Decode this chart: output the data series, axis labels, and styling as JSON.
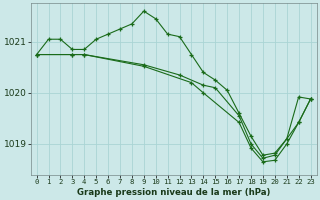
{
  "background_color": "#cce8e8",
  "grid_color": "#aad4d4",
  "line_color": "#1a6b1a",
  "xlabel": "Graphe pression niveau de la mer (hPa)",
  "ylim": [
    1018.4,
    1021.75
  ],
  "yticks": [
    1019,
    1020,
    1021
  ],
  "xlim": [
    -0.5,
    23.5
  ],
  "xticks": [
    0,
    1,
    2,
    3,
    4,
    5,
    6,
    7,
    8,
    9,
    10,
    11,
    12,
    13,
    14,
    15,
    16,
    17,
    18,
    19,
    20,
    21,
    22,
    23
  ],
  "series": [
    {
      "x": [
        0,
        1,
        2,
        3,
        4,
        5,
        6,
        7,
        8,
        9,
        10,
        11,
        12,
        13,
        14,
        15,
        16,
        17,
        18,
        19,
        20,
        21,
        22,
        23
      ],
      "y": [
        1020.75,
        1021.05,
        1021.05,
        1020.85,
        1020.85,
        1021.05,
        1021.15,
        1021.25,
        1021.35,
        1021.6,
        1021.45,
        1021.15,
        1021.1,
        1020.75,
        1020.4,
        1020.25,
        1020.05,
        1019.6,
        1019.15,
        1018.78,
        1018.82,
        1019.1,
        1019.92,
        1019.88
      ]
    },
    {
      "x": [
        0,
        3,
        4,
        9,
        12,
        14,
        15,
        17,
        18,
        19,
        20,
        22,
        23
      ],
      "y": [
        1020.75,
        1020.75,
        1020.75,
        1020.55,
        1020.35,
        1020.15,
        1020.1,
        1019.55,
        1019.0,
        1018.72,
        1018.78,
        1019.42,
        1019.88
      ]
    },
    {
      "x": [
        0,
        3,
        4,
        9,
        13,
        14,
        17,
        18,
        19,
        20,
        21,
        22,
        23
      ],
      "y": [
        1020.75,
        1020.75,
        1020.75,
        1020.52,
        1020.2,
        1020.0,
        1019.42,
        1018.92,
        1018.65,
        1018.68,
        1019.0,
        1019.42,
        1019.88
      ]
    }
  ]
}
